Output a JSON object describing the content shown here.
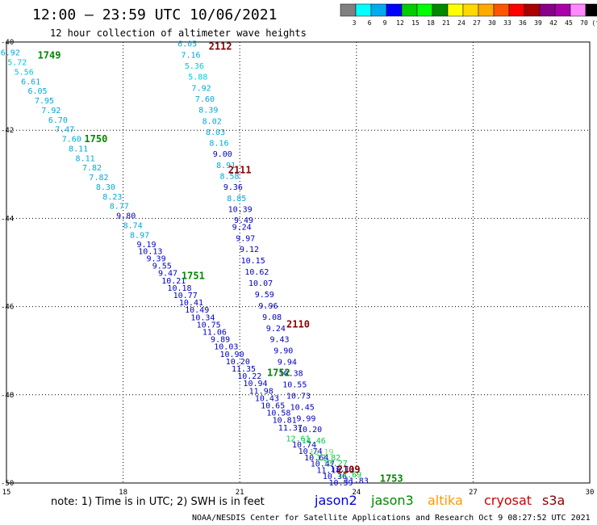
{
  "header": {
    "title": "12:00 – 23:59 UTC 10/06/2021",
    "subtitle": "12 hour collection of altimeter wave heights"
  },
  "colorbar": {
    "labels": [
      "3",
      "6",
      "9",
      "12",
      "15",
      "18",
      "21",
      "24",
      "27",
      "30",
      "33",
      "36",
      "39",
      "42",
      "45",
      "70",
      "(ft)"
    ],
    "colors": [
      "#808080",
      "#00ffff",
      "#00aaee",
      "#0000ff",
      "#00cc00",
      "#00ff00",
      "#008800",
      "#ffff00",
      "#ffd800",
      "#ffaa00",
      "#ff5500",
      "#ff0000",
      "#aa0000",
      "#880088",
      "#aa00aa",
      "#ff88ff",
      "#000000"
    ]
  },
  "note": "note: 1) Time is in UTC; 2) SWH is in feet",
  "satellites": [
    {
      "name": "jason2",
      "color": "#0000dd"
    },
    {
      "name": "jason3",
      "color": "#008800"
    },
    {
      "name": "altika",
      "color": "#ff9900"
    },
    {
      "name": "cryosat",
      "color": "#cc0000"
    },
    {
      "name": "s3a",
      "color": "#880000"
    }
  ],
  "footer": "NOAA/NESDIS Center for Satellite Applications and Research   Oct  9 08:27:52 UTC 2021",
  "chart_data": {
    "type": "scatter",
    "xlim": [
      15,
      30
    ],
    "ylim": [
      -50,
      -40
    ],
    "x_ticks": [
      15,
      18,
      21,
      24,
      27,
      30
    ],
    "y_ticks": [
      -40,
      -42,
      -44,
      -46,
      -48,
      -50
    ],
    "grid": true,
    "swh_thresholds": [
      6,
      9,
      12,
      15,
      18
    ],
    "swh_colors": [
      "#00c8d8",
      "#00a8d8",
      "#0000c0",
      "#00cc44",
      "#66dd66"
    ],
    "pass_labels": [
      {
        "text": "1749",
        "x": 16.1,
        "y": -40.3,
        "color": "#008800"
      },
      {
        "text": "1750",
        "x": 17.3,
        "y": -42.2,
        "color": "#008800"
      },
      {
        "text": "1751",
        "x": 19.8,
        "y": -45.3,
        "color": "#008800"
      },
      {
        "text": "1752",
        "x": 22.0,
        "y": -47.5,
        "color": "#008800"
      },
      {
        "text": "1753",
        "x": 24.9,
        "y": -49.9,
        "color": "#008800"
      },
      {
        "text": "2112",
        "x": 20.5,
        "y": -40.1,
        "color": "#880000"
      },
      {
        "text": "2111",
        "x": 21.0,
        "y": -42.9,
        "color": "#880000"
      },
      {
        "text": "2110",
        "x": 22.5,
        "y": -46.4,
        "color": "#880000"
      },
      {
        "text": "2109",
        "x": 23.8,
        "y": -49.7,
        "color": "#880000"
      }
    ],
    "series": [
      {
        "name": "1749-1750",
        "start": [
          15.1,
          -40.25
        ],
        "end": [
          18.6,
          -44.6
        ],
        "values": [
          6.92,
          5.72,
          5.56,
          6.61,
          6.05,
          7.95,
          7.92,
          6.7,
          7.47,
          7.6,
          8.11,
          8.11,
          7.82,
          7.82,
          8.3,
          8.23,
          8.77,
          9.8,
          8.74,
          8.97,
          9.19
        ]
      },
      {
        "name": "1750-1752",
        "start": [
          18.7,
          -44.75
        ],
        "end": [
          22.3,
          -48.75
        ],
        "values": [
          10.13,
          9.39,
          9.55,
          9.47,
          10.21,
          10.18,
          10.77,
          10.41,
          10.49,
          10.34,
          10.75,
          11.06,
          9.89,
          10.03,
          10.9,
          10.2,
          11.35,
          10.22,
          10.94,
          11.98,
          10.43,
          10.65,
          10.58,
          10.81,
          11.37
        ]
      },
      {
        "name": "1752-1753",
        "start": [
          22.5,
          -49.0
        ],
        "end": [
          23.6,
          -50.0
        ],
        "values": [
          12.61,
          10.74,
          10.74,
          10.64,
          10.47,
          11.18,
          10.36,
          10.59
        ]
      },
      {
        "name": "2112-2111",
        "start": [
          19.65,
          -40.05
        ],
        "end": [
          21.1,
          -44.05
        ],
        "values": [
          6.05,
          7.16,
          5.36,
          5.88,
          7.92,
          7.6,
          8.39,
          8.02,
          8.03,
          8.16,
          9.0,
          8.91,
          8.58,
          9.36,
          8.85,
          10.39,
          9.49
        ]
      },
      {
        "name": "2111-2110",
        "start": [
          21.05,
          -44.2
        ],
        "end": [
          22.9,
          -49.05
        ],
        "values": [
          9.24,
          9.97,
          9.12,
          10.15,
          10.62,
          10.07,
          9.59,
          9.96,
          9.08,
          9.24,
          9.43,
          9.9,
          9.94,
          10.38,
          10.55,
          10.73,
          10.45,
          9.99,
          10.2,
          14.46
        ]
      },
      {
        "name": "2110-2109",
        "start": [
          23.1,
          -49.3
        ],
        "end": [
          24.0,
          -49.95
        ],
        "values": [
          15.19,
          12.82,
          13.27,
          11.11,
          12.69,
          11.83
        ]
      }
    ]
  }
}
